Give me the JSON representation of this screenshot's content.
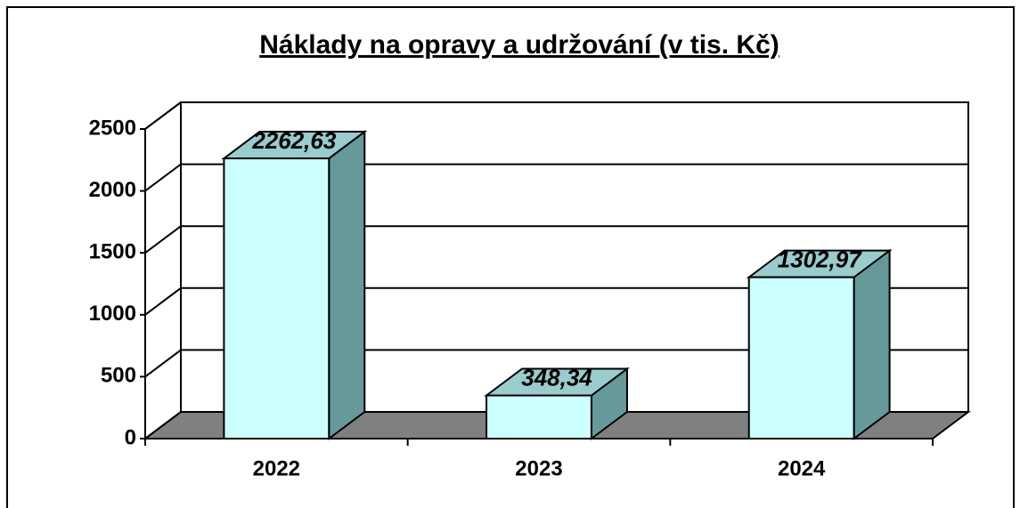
{
  "chart_data": {
    "type": "bar3d",
    "title": "Náklady na opravy a udržování (v tis. Kč)",
    "categories": [
      "2022",
      "2023",
      "2024"
    ],
    "values": [
      2262.63,
      348.34,
      1302.97
    ],
    "value_labels": [
      "2262,63",
      "348,34",
      "1302,97"
    ],
    "color": "#ccffff",
    "ylim": [
      0,
      2500
    ],
    "yticks": [
      0,
      500,
      1000,
      1500,
      2000,
      2500
    ],
    "grid": true
  }
}
